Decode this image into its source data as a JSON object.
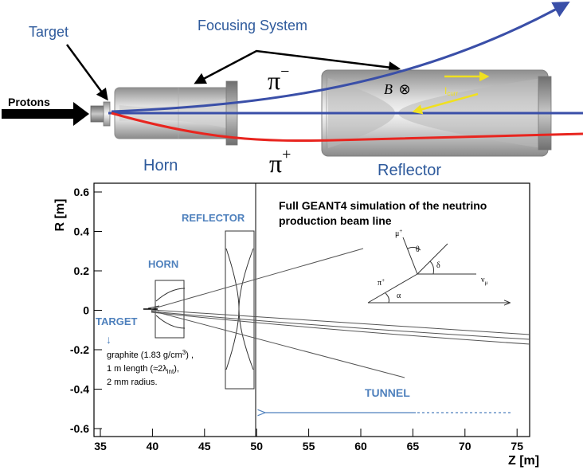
{
  "top": {
    "target_label": "Target",
    "focusing_label": "Focusing System",
    "protons_label": "Protons",
    "horn_label": "Horn",
    "reflector_label": "Reflector",
    "pi_minus": "π",
    "pi_minus_sup": "−",
    "pi_plus": "π",
    "pi_plus_sup": "+",
    "b_field": "B",
    "b_symbol": "⊗",
    "current": "I",
    "current_sub": "curr"
  },
  "plot": {
    "ylabel": "R [m]",
    "xlabel": "Z [m]",
    "yticks": [
      "0.6",
      "0.4",
      "0.2",
      "0",
      "-0.2",
      "-0.4",
      "-0.6"
    ],
    "xticks": [
      "35",
      "40",
      "45",
      "50",
      "55",
      "60",
      "65",
      "70",
      "75"
    ],
    "sim_title_1": "Full GEANT4 simulation of the neutrino",
    "sim_title_2": "production beam line",
    "reflector": "REFLECTOR",
    "horn": "HORN",
    "target": "TARGET",
    "arrow_down": "↓",
    "tunnel": "TUNNEL",
    "graphite_1a": "graphite (1.83 g/cm",
    "graphite_1sup": "3",
    "graphite_1b": ") ,",
    "graphite_2a": "1 m length (≈2λ",
    "graphite_2sub": "int",
    "graphite_2b": "),",
    "graphite_3": "2 mm radius.",
    "mu": "μ",
    "mu_sup": "+",
    "theta": "θ",
    "delta": "δ",
    "nu": "ν",
    "nu_sub": "μ",
    "pi": "π",
    "pi_sup": "+",
    "alpha": "α"
  },
  "colors": {
    "blue_track": "#3a4fa8",
    "red_track": "#e8251f",
    "yellow": "#f0e020",
    "label_blue": "#2e5a9c",
    "label_lightblue": "#4f81bd"
  }
}
